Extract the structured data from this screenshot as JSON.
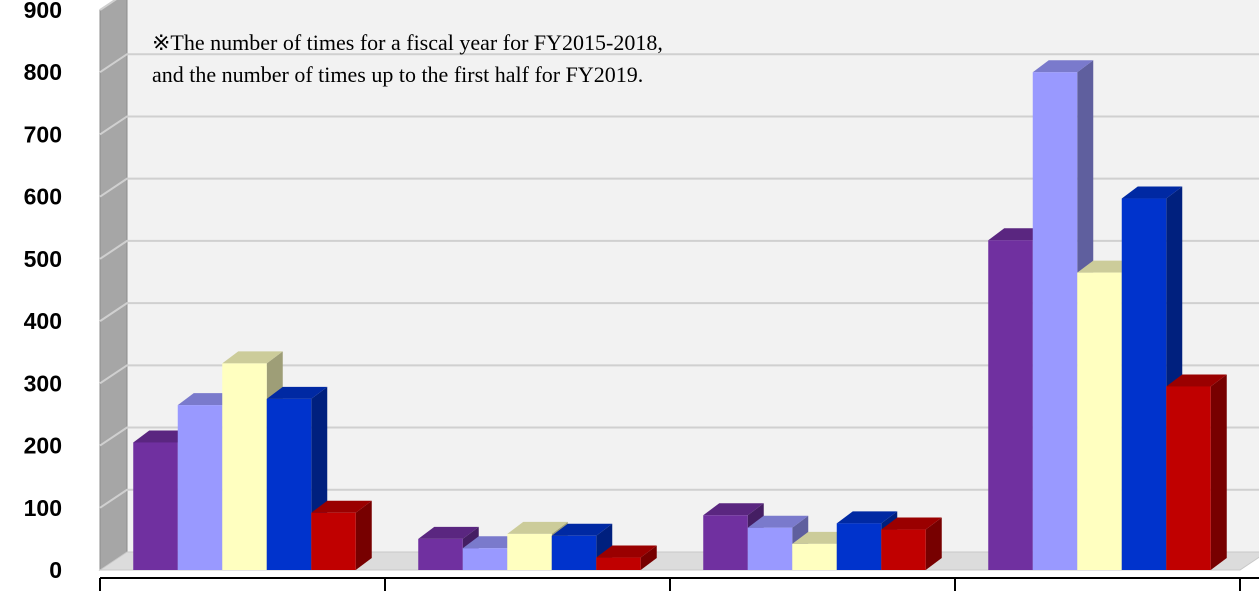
{
  "chart_data": {
    "type": "bar",
    "title": "",
    "xlabel": "",
    "ylabel": "",
    "ylim": [
      0,
      900
    ],
    "yticks": [
      "0",
      "100",
      "200",
      "300",
      "400",
      "500",
      "600",
      "700",
      "800",
      "900"
    ],
    "grid": true,
    "categories": [
      "",
      "",
      "",
      ""
    ],
    "series": [
      {
        "values": [
          205,
          50,
          88,
          530
        ],
        "color": "#7030a0"
      },
      {
        "values": [
          265,
          35,
          68,
          800
        ],
        "color": "#9999ff"
      },
      {
        "values": [
          332,
          58,
          42,
          478
        ],
        "color": "#ffffc0"
      },
      {
        "values": [
          275,
          55,
          75,
          597
        ],
        "color": "#0033cc"
      },
      {
        "values": [
          92,
          20,
          65,
          295
        ],
        "color": "#c00000"
      }
    ],
    "annotation": [
      "※The number of times for a fiscal year for FY2015-2018,",
      "and the number of times up to the first half for FY2019."
    ]
  }
}
